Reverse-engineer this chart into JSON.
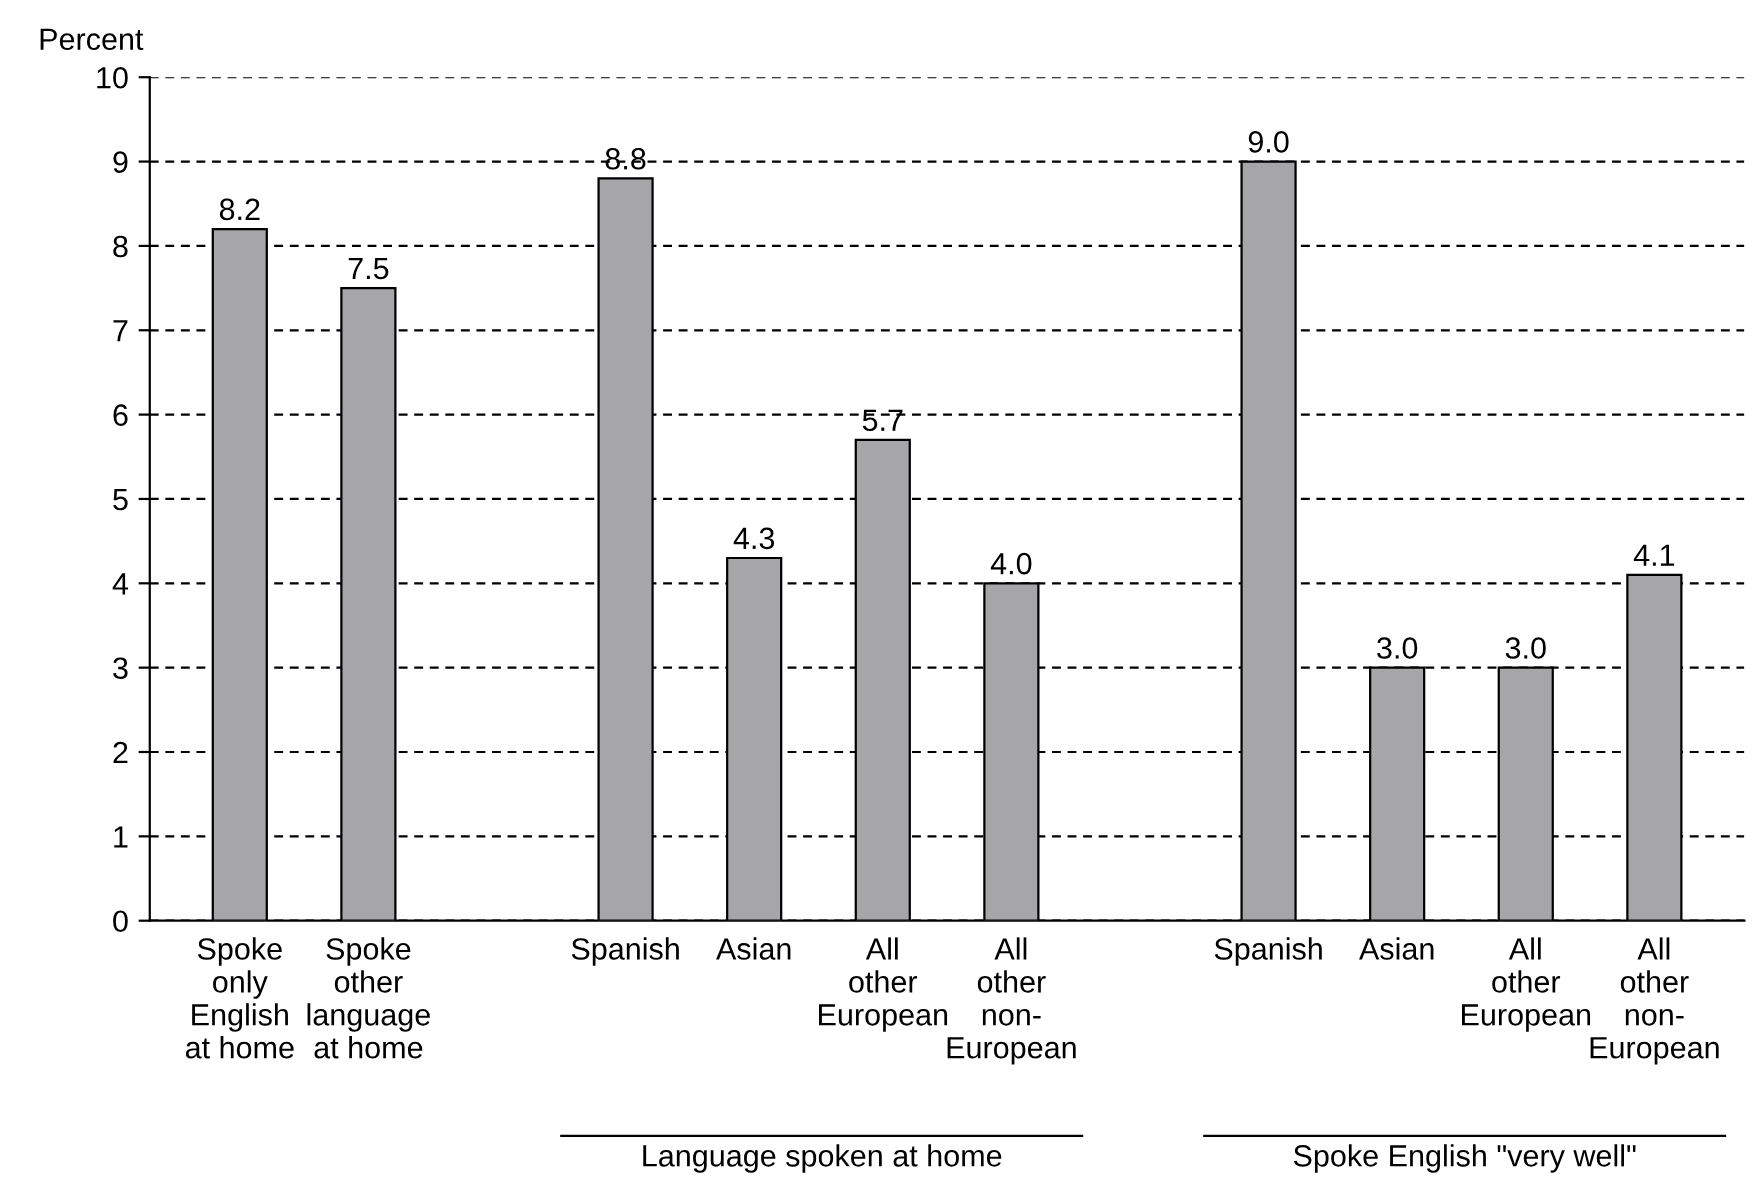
{
  "chart_data": {
    "type": "bar",
    "ylabel": "Percent",
    "categories": [
      "Spoke\nonly\nEnglish\nat home",
      "Spoke\nother\nlanguage\nat home",
      null,
      "Spanish",
      "Asian",
      "All\nother\nEuropean",
      "All\nother\nnon-\nEuropean",
      null,
      "Spanish",
      "Asian",
      "All\nother\nEuropean",
      "All\nother\nnon-\nEuropean"
    ],
    "values": [
      8.2,
      7.5,
      null,
      8.8,
      4.3,
      5.7,
      4.0,
      null,
      9.0,
      3.0,
      3.0,
      4.1
    ],
    "value_labels": [
      "8.2",
      "7.5",
      null,
      "8.8",
      "4.3",
      "5.7",
      "4.0",
      null,
      "9.0",
      "3.0",
      "3.0",
      "4.1"
    ],
    "color": "#a6a6a8",
    "ylim": [
      0,
      10
    ],
    "yticks": [
      0,
      1,
      2,
      3,
      4,
      5,
      6,
      7,
      8,
      9,
      10
    ],
    "grid": "y",
    "line_style": "dashed",
    "annotations": [
      "Language spoken at home",
      "Spoke English \"very well\""
    ]
  }
}
